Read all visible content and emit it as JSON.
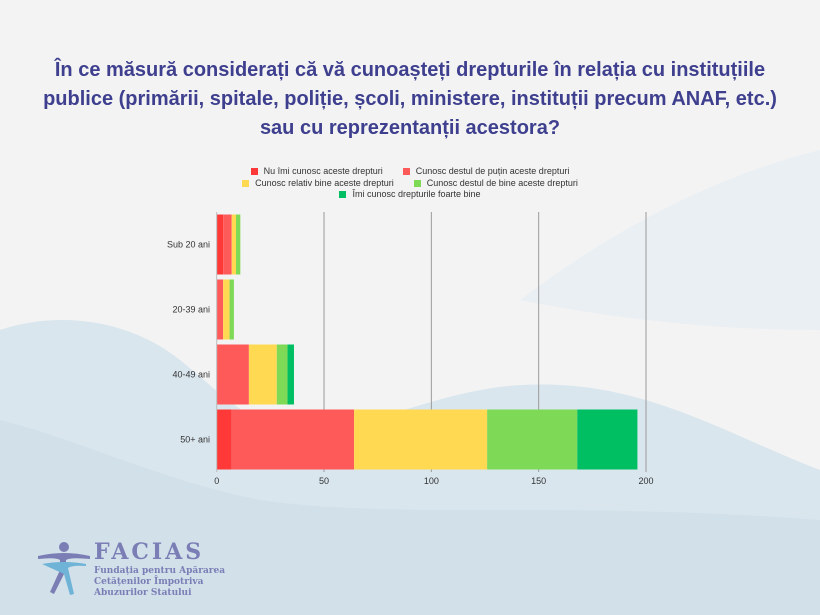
{
  "title": "În ce măsură considerați că vă cunoașteți drepturile în relația cu instituțiile publice (primării, spitale, poliție, școli, ministere, instituții precum ANAF, etc.) sau cu reprezentanții acestora?",
  "chart_data": {
    "type": "bar",
    "orientation": "horizontal-stacked",
    "categories": [
      "Sub 20 ani",
      "20-39 ani",
      "40-49 ani",
      "50+ ani"
    ],
    "series": [
      {
        "name": "Nu îmi cunosc aceste drepturi",
        "color": "#ff3838",
        "values": [
          3,
          0,
          0,
          7
        ]
      },
      {
        "name": "Cunosc destul de puțin aceste drepturi",
        "color": "#ff5a5a",
        "values": [
          4,
          3,
          15,
          57
        ]
      },
      {
        "name": "Cunosc relativ bine aceste drepturi",
        "color": "#ffd952",
        "values": [
          2,
          3,
          13,
          62
        ]
      },
      {
        "name": "Cunosc destul de bine aceste drepturi",
        "color": "#7ed957",
        "values": [
          2,
          2,
          5,
          42
        ]
      },
      {
        "name": "Îmi cunosc drepturile foarte bine",
        "color": "#00bf63",
        "values": [
          0,
          0,
          3,
          28
        ]
      }
    ],
    "xticks": [
      0,
      50,
      100,
      150,
      200
    ],
    "xlim": [
      0,
      200
    ],
    "grid": true,
    "legend": "top"
  },
  "logo": {
    "name": "FACIAS",
    "line1": "Fundația pentru Apărarea",
    "line2": "Cetățenilor Împotriva",
    "line3": "Abuzurilor Statului"
  }
}
